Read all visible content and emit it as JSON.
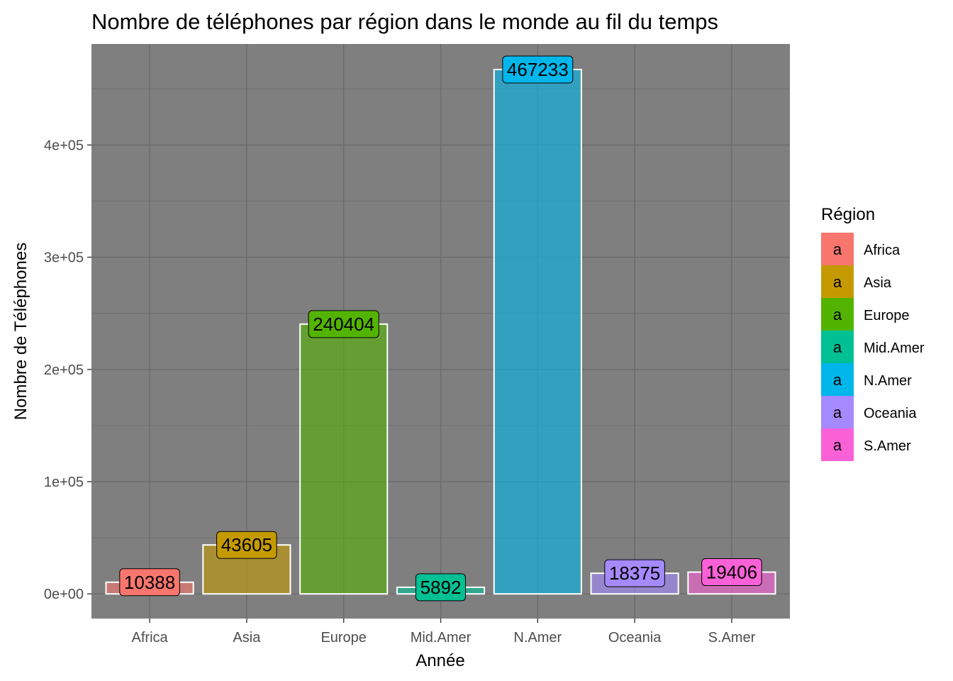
{
  "chart_data": {
    "type": "bar",
    "title": "Nombre de téléphones par région dans le monde au fil du temps",
    "xlabel": "Année",
    "ylabel": "Nombre de Téléphones",
    "categories": [
      "Africa",
      "Asia",
      "Europe",
      "Mid.Amer",
      "N.Amer",
      "Oceania",
      "S.Amer"
    ],
    "values": [
      10388,
      43605,
      240404,
      5892,
      467233,
      18375,
      19406
    ],
    "data_labels": [
      "10388",
      "43605",
      "240404",
      "5892",
      "467233",
      "18375",
      "19406"
    ],
    "colors": [
      "#F8766D",
      "#C49A00",
      "#53B400",
      "#00C094",
      "#00B6EB",
      "#A58AFF",
      "#FB61D7"
    ],
    "ylim": [
      -22000,
      490000
    ],
    "y_ticks": [
      0,
      100000,
      200000,
      300000,
      400000
    ],
    "y_tick_labels": [
      "0e+00",
      "1e+05",
      "2e+05",
      "3e+05",
      "4e+05"
    ],
    "y_minor_ticks": [
      50000,
      150000,
      250000,
      350000,
      450000
    ],
    "grid": true,
    "panel_background": "#7F7F7F",
    "grid_color": "#6B6B6B",
    "bar_outline": "#FFFFFF",
    "legend": {
      "title": "Région",
      "position": "right",
      "key_glyph": "a",
      "entries": [
        "Africa",
        "Asia",
        "Europe",
        "Mid.Amer",
        "N.Amer",
        "Oceania",
        "S.Amer"
      ]
    }
  }
}
